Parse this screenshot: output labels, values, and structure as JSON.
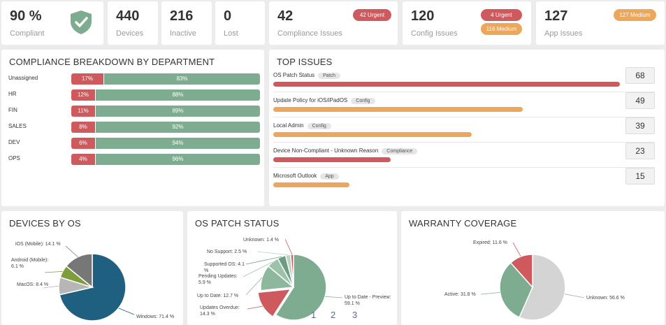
{
  "kpis": {
    "compliant": {
      "value": "90 %",
      "label": "Compliant"
    },
    "devices": {
      "value": "440",
      "label": "Devices"
    },
    "inactive": {
      "value": "216",
      "label": "Inactive"
    },
    "lost": {
      "value": "0",
      "label": "Lost"
    },
    "compliance_issues": {
      "value": "42",
      "label": "Compliance Issues",
      "badges": [
        "42 Urgent"
      ]
    },
    "config_issues": {
      "value": "120",
      "label": "Config Issues",
      "badges": [
        "4 Urgent",
        "116 Medium"
      ]
    },
    "app_issues": {
      "value": "127",
      "label": "App Issues",
      "badges": [
        "127 Medium"
      ]
    }
  },
  "compliance_breakdown": {
    "title": "COMPLIANCE BREAKDOWN BY DEPARTMENT",
    "rows": [
      {
        "name": "Unassigned",
        "noncompliant": "17%",
        "compliant": "83%",
        "pct": 17
      },
      {
        "name": "HR",
        "noncompliant": "12%",
        "compliant": "88%",
        "pct": 12
      },
      {
        "name": "FIN",
        "noncompliant": "11%",
        "compliant": "89%",
        "pct": 11
      },
      {
        "name": "SALES",
        "noncompliant": "8%",
        "compliant": "92%",
        "pct": 8
      },
      {
        "name": "DEV",
        "noncompliant": "6%",
        "compliant": "94%",
        "pct": 6
      },
      {
        "name": "OPS",
        "noncompliant": "4%",
        "compliant": "96%",
        "pct": 4
      }
    ]
  },
  "top_issues": {
    "title": "TOP ISSUES",
    "max": 68,
    "rows": [
      {
        "name": "OS Patch Status",
        "tag": "Patch",
        "count": "68",
        "value": 68,
        "color": "#cf5a5e"
      },
      {
        "name": "Update Policy for iOS/iPadOS",
        "tag": "Config",
        "count": "49",
        "value": 49,
        "color": "#eba75c"
      },
      {
        "name": "Local Admin",
        "tag": "Config",
        "count": "39",
        "value": 39,
        "color": "#eba75c"
      },
      {
        "name": "Device Non-Compliant - Unknown Reason",
        "tag": "Compliance",
        "count": "23",
        "value": 23,
        "color": "#cf5a5e"
      },
      {
        "name": "Microsoft Outlook",
        "tag": "App",
        "count": "15",
        "value": 15,
        "color": "#eba75c"
      }
    ]
  },
  "devices_by_os": {
    "title": "DEVICES BY OS",
    "slices": [
      {
        "label": "Windows: 71.4 %",
        "value": 71.4,
        "color": "#1f5f80"
      },
      {
        "label": "MacOS: 8.4 %",
        "value": 8.4,
        "color": "#b6b6b6"
      },
      {
        "label": "Android (Mobile): 6.1 %",
        "value": 6.1,
        "color": "#7f9d3b"
      },
      {
        "label": "iOS (Mobile): 14.1 %",
        "value": 14.1,
        "color": "#777777"
      }
    ]
  },
  "os_patch_status": {
    "title": "OS PATCH STATUS",
    "slices": [
      {
        "label": "Up to Date - Preview: 59.1 %",
        "value": 59.1,
        "color": "#7eac91"
      },
      {
        "label": "Updates Overdue: 14.3 %",
        "value": 14.3,
        "color": "#cf5a5e"
      },
      {
        "label": "Up to Date: 12.7 %",
        "value": 12.7,
        "color": "#8db89d"
      },
      {
        "label": "Pending Updates: 5.9 %",
        "value": 5.9,
        "color": "#9cc3aa"
      },
      {
        "label": "Supported OS: 4.1 %",
        "value": 4.1,
        "color": "#6e9c80"
      },
      {
        "label": "No Support: 2.5 %",
        "value": 2.5,
        "color": "#b7d3c1"
      },
      {
        "label": "Unknown: 1.4 %",
        "value": 1.4,
        "color": "#cf5a5e"
      }
    ]
  },
  "warranty": {
    "title": "WARRANTY COVERAGE",
    "slices": [
      {
        "label": "Unknown: 56.6 %",
        "value": 56.6,
        "color": "#d4d4d4"
      },
      {
        "label": "Active: 31.8 %",
        "value": 31.8,
        "color": "#7eac91"
      },
      {
        "label": "Expired: 11.6 %",
        "value": 11.6,
        "color": "#cf5a5e"
      }
    ]
  },
  "pager": [
    "1",
    "2",
    "3"
  ]
}
